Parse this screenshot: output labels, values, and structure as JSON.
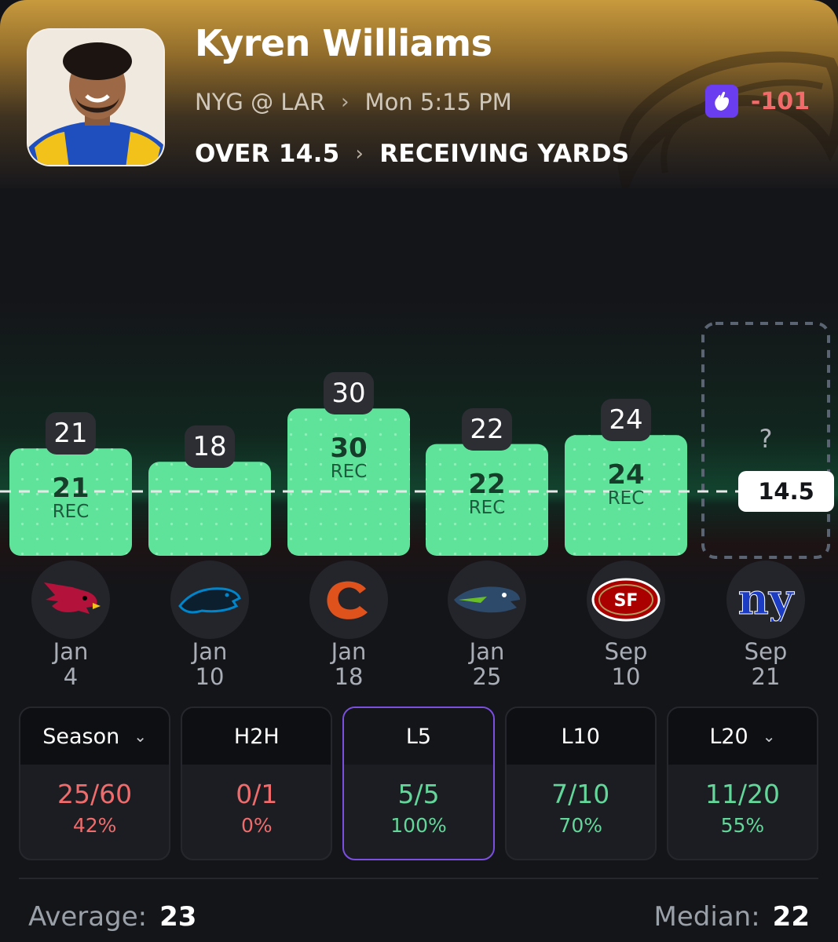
{
  "player": {
    "name": "Kyren Williams",
    "matchup": "NYG @ LAR",
    "game_time": "Mon 5:15 PM",
    "prop_side": "OVER 14.5",
    "prop_market": "RECEIVING YARDS",
    "odds": "-101",
    "odds_color": "#f36a6a",
    "book_icon": "underdog-hand-icon"
  },
  "chart_data": {
    "type": "bar",
    "line": 14.5,
    "line_label": "14.5",
    "ylim": [
      0,
      40
    ],
    "categories": [
      "Jan 4",
      "Jan 10",
      "Jan 18",
      "Jan 25",
      "Sep 10",
      "Sep 21"
    ],
    "values": [
      21,
      18,
      30,
      22,
      24,
      null
    ],
    "top_labels": [
      "21",
      "18",
      "30",
      "22",
      "24",
      "?"
    ],
    "inner_labels": [
      "21",
      "",
      "30",
      "22",
      "24",
      ""
    ],
    "inner_units": [
      "REC",
      "",
      "REC",
      "REC",
      "REC",
      ""
    ],
    "bar_color": "#5fe39a",
    "line_color": "#e8e8e8"
  },
  "games": [
    {
      "month": "Jan",
      "day": "4",
      "opponent_icon": "cardinals-logo-icon"
    },
    {
      "month": "Jan",
      "day": "10",
      "opponent_icon": "panthers-logo-icon"
    },
    {
      "month": "Jan",
      "day": "18",
      "opponent_icon": "bears-logo-icon"
    },
    {
      "month": "Jan",
      "day": "25",
      "opponent_icon": "seahawks-logo-icon"
    },
    {
      "month": "Sep",
      "day": "10",
      "opponent_icon": "49ers-logo-icon"
    },
    {
      "month": "Sep",
      "day": "21",
      "opponent_icon": "giants-logo-icon"
    }
  ],
  "stats": [
    {
      "label": "Season",
      "record": "25/60",
      "pct": "42%",
      "has_caret": true,
      "tone": "red"
    },
    {
      "label": "H2H",
      "record": "0/1",
      "pct": "0%",
      "has_caret": false,
      "tone": "red"
    },
    {
      "label": "L5",
      "record": "5/5",
      "pct": "100%",
      "has_caret": false,
      "tone": "green",
      "active": true
    },
    {
      "label": "L10",
      "record": "7/10",
      "pct": "70%",
      "has_caret": false,
      "tone": "green"
    },
    {
      "label": "L20",
      "record": "11/20",
      "pct": "55%",
      "has_caret": true,
      "tone": "green"
    }
  ],
  "summary": {
    "average_label": "Average:",
    "average_value": "23",
    "median_label": "Median:",
    "median_value": "22"
  },
  "colors": {
    "accent_active": "#7b4fe0",
    "hit_green": "#63d79a",
    "miss_red": "#f06c6c"
  }
}
